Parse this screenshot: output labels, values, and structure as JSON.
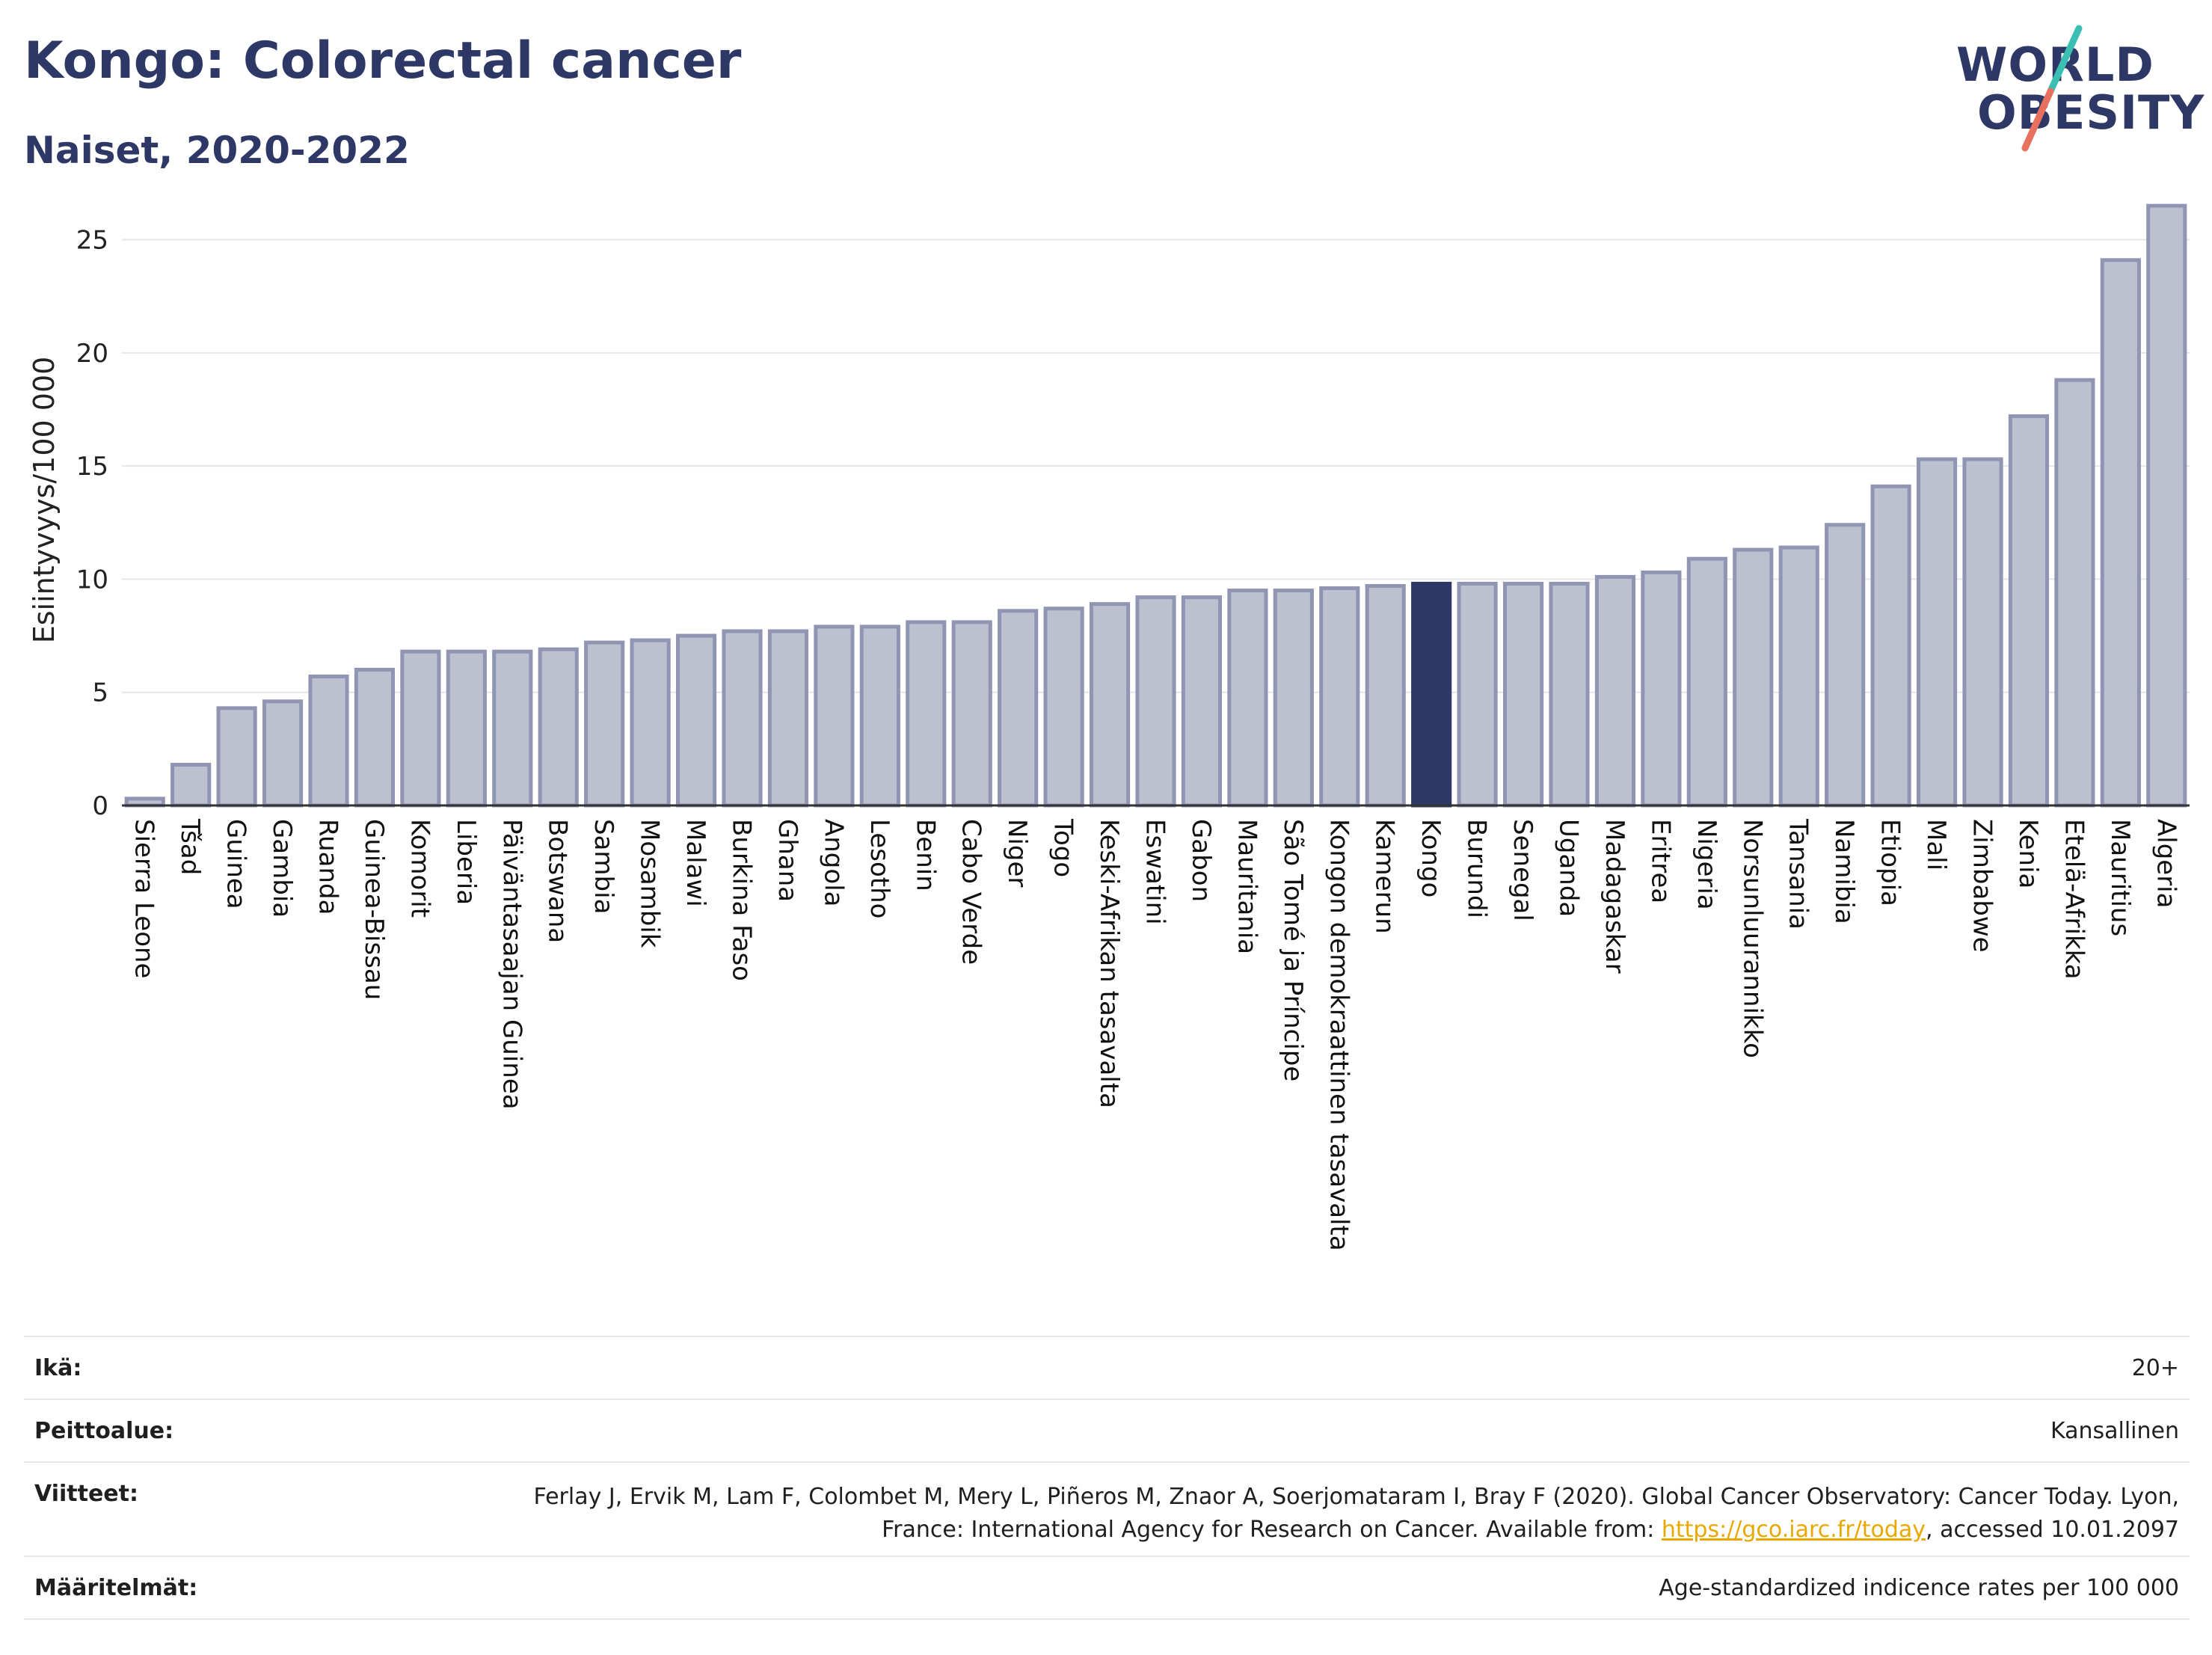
{
  "header": {
    "title": "Kongo: Colorectal cancer",
    "subtitle": "Naiset, 2020-2022"
  },
  "logo": {
    "line1": "WORLD",
    "line2": "OBESITY"
  },
  "colors": {
    "bar": "#bcc0cf",
    "bar_border": "#8f95b2",
    "highlight": "#2d3866",
    "grid": "#e4e6ec",
    "axis": "#333333"
  },
  "chart_data": {
    "type": "bar",
    "ylabel": "Esiintyvyys/100 000",
    "ylim": [
      0,
      27
    ],
    "yticks": [
      0,
      5,
      10,
      15,
      20,
      25
    ],
    "grid": true,
    "highlight": "Kongo",
    "categories": [
      "Sierra Leone",
      "Tšad",
      "Guinea",
      "Gambia",
      "Ruanda",
      "Guinea-Bissau",
      "Komorit",
      "Liberia",
      "Päiväntasaajan Guinea",
      "Botswana",
      "Sambia",
      "Mosambik",
      "Malawi",
      "Burkina Faso",
      "Ghana",
      "Angola",
      "Lesotho",
      "Benin",
      "Cabo Verde",
      "Niger",
      "Togo",
      "Keski-Afrikan tasavalta",
      "Eswatini",
      "Gabon",
      "Mauritania",
      "São Tomé ja Príncipe",
      "Kongon demokraattinen tasavalta",
      "Kamerun",
      "Kongo",
      "Burundi",
      "Senegal",
      "Uganda",
      "Madagaskar",
      "Eritrea",
      "Nigeria",
      "Norsunluurannikko",
      "Tansania",
      "Namibia",
      "Etiopia",
      "Mali",
      "Zimbabwe",
      "Kenia",
      "Etelä-Afrikka",
      "Mauritius",
      "Algeria"
    ],
    "values": [
      0.3,
      1.8,
      4.3,
      4.6,
      5.7,
      6.0,
      6.8,
      6.8,
      6.8,
      6.9,
      7.2,
      7.3,
      7.5,
      7.7,
      7.7,
      7.9,
      7.9,
      8.1,
      8.1,
      8.6,
      8.7,
      8.9,
      9.2,
      9.2,
      9.5,
      9.5,
      9.6,
      9.7,
      9.8,
      9.8,
      9.8,
      9.8,
      10.1,
      10.3,
      10.9,
      11.3,
      11.4,
      12.4,
      14.1,
      15.3,
      15.3,
      17.2,
      18.8,
      24.1,
      26.5
    ]
  },
  "info": {
    "age_label": "Ikä:",
    "age_value": "20+",
    "coverage_label": "Peittoalue:",
    "coverage_value": "Kansallinen",
    "refs_label": "Viitteet:",
    "refs_text": "Ferlay J, Ervik M, Lam F, Colombet M, Mery L, Piñeros M, Znaor A, Soerjomataram I, Bray F (2020). Global Cancer Observatory: Cancer Today. Lyon, France: International Agency for Research on Cancer. Available from: ",
    "refs_link": "https://gco.iarc.fr/today",
    "refs_tail": ", accessed 10.01.2097",
    "defs_label": "Määritelmät:",
    "defs_value": "Age-standardized indicence rates per 100 000"
  }
}
